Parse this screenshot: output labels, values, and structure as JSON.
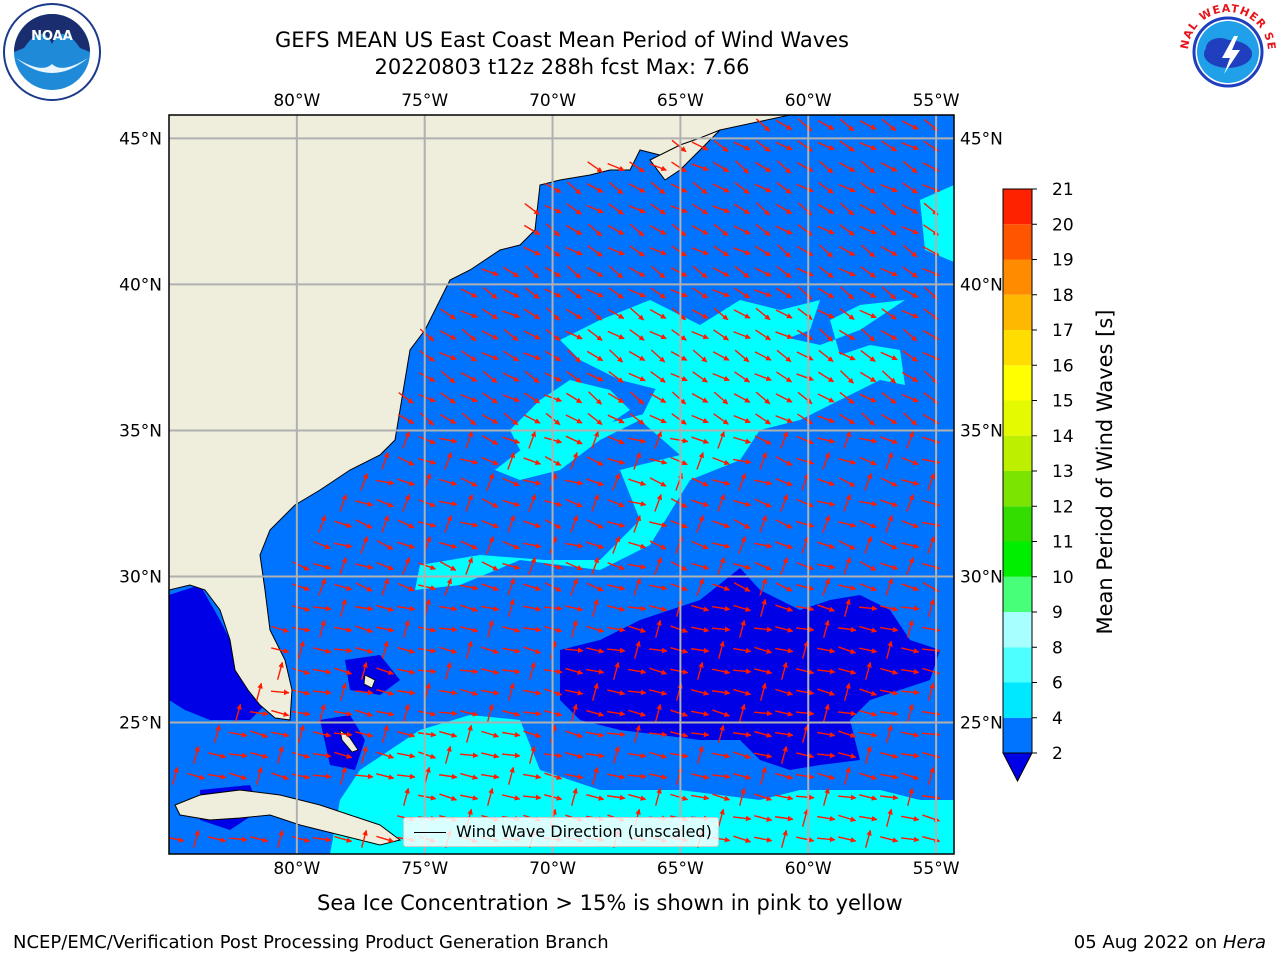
{
  "title": {
    "line1": "GEFS MEAN US East Coast Mean Period of Wind Waves",
    "line2": "20220803 t12z 288h fcst   Max: 7.66"
  },
  "logos": {
    "left": {
      "name": "noaa-logo",
      "text": "NOAA"
    },
    "right": {
      "name": "nws-logo",
      "text": "NATIONAL WEATHER SERVICE"
    }
  },
  "map": {
    "lon_labels": [
      "80°W",
      "75°W",
      "70°W",
      "65°W",
      "60°W",
      "55°W"
    ],
    "lat_labels": [
      "45°N",
      "40°N",
      "35°N",
      "30°N",
      "25°N"
    ],
    "extent": {
      "lon_min": -85,
      "lon_max": -54.3,
      "lat_min": 20.5,
      "lat_max": 45.8
    },
    "grid": true,
    "land_color": "#efeedc",
    "arrow_color": "#ff1a00"
  },
  "legend": {
    "label": "Wind Wave Direction (unscaled)",
    "position": "lower-center"
  },
  "colorbar": {
    "label": "Mean Period of Wind Waves [s]",
    "ticks": [
      "2",
      "4",
      "6",
      "8",
      "9",
      "10",
      "11",
      "12",
      "13",
      "14",
      "15",
      "16",
      "17",
      "18",
      "19",
      "20",
      "21"
    ],
    "colors": [
      "#0073ff",
      "#00e8ff",
      "#4dffff",
      "#a8ffff",
      "#48ff7a",
      "#00ee00",
      "#33dd00",
      "#7be400",
      "#bcf000",
      "#e4fa00",
      "#ffff00",
      "#ffdd00",
      "#ffb800",
      "#ff8c00",
      "#ff5500",
      "#ff2200"
    ],
    "under_color": "#0000e6"
  },
  "field_colors": {
    "dark": "#0000e6",
    "mid": "#0073ff",
    "light": "#00ffff"
  },
  "notes": {
    "ice": "Sea Ice Concentration > 15% is shown in pink to yellow",
    "footer_left": "NCEP/EMC/Verification Post Processing Product Generation Branch",
    "footer_date": "05 Aug 2022 on ",
    "footer_machine": "Hera"
  }
}
